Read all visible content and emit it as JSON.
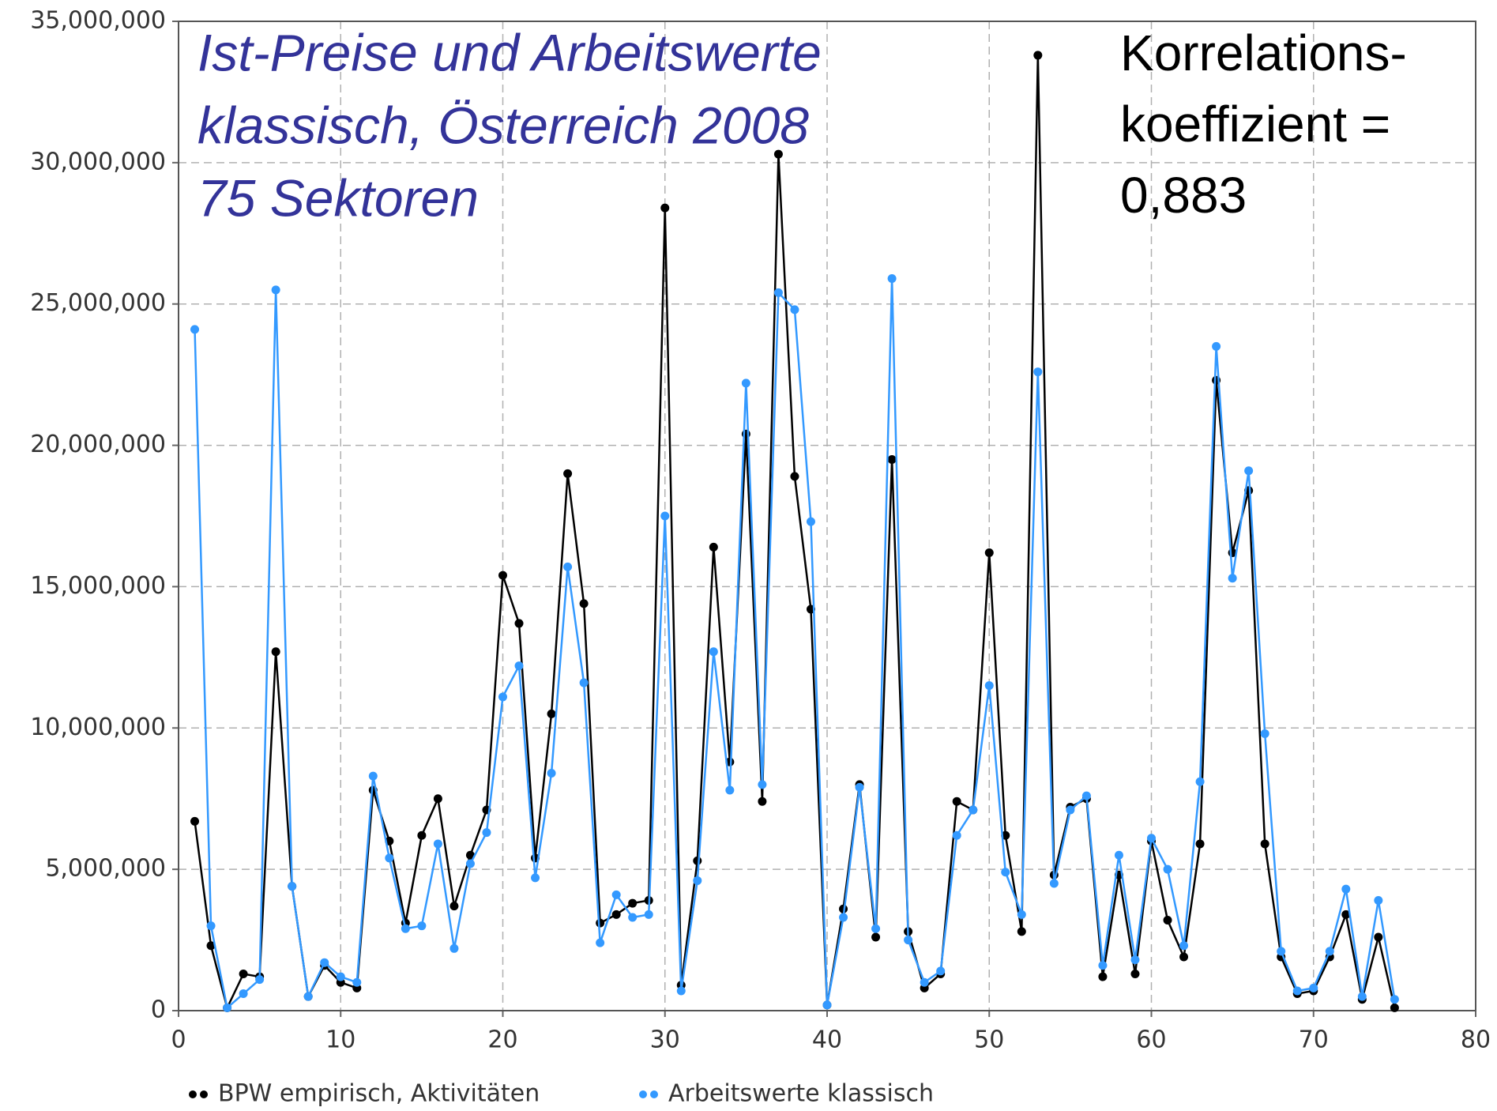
{
  "chart_data": {
    "type": "line",
    "title": [
      "Ist-Preise und Arbeitswerte",
      "klassisch, Österreich 2008",
      "75 Sektoren"
    ],
    "annotation": [
      "Korrelations-",
      "koeffizient =",
      "0,883"
    ],
    "x": [
      1,
      2,
      3,
      4,
      5,
      6,
      7,
      8,
      9,
      10,
      11,
      12,
      13,
      14,
      15,
      16,
      17,
      18,
      19,
      20,
      21,
      22,
      23,
      24,
      25,
      26,
      27,
      28,
      29,
      30,
      31,
      32,
      33,
      34,
      35,
      36,
      37,
      38,
      39,
      40,
      41,
      42,
      43,
      44,
      45,
      46,
      47,
      48,
      49,
      50,
      51,
      52,
      53,
      54,
      55,
      56,
      57,
      58,
      59,
      60,
      61,
      62,
      63,
      64,
      65,
      66,
      67,
      68,
      69,
      70,
      71,
      72,
      73,
      74,
      75
    ],
    "series": [
      {
        "name": "BPW empirisch, Aktivitäten",
        "color": "#000000",
        "values": [
          6700000,
          2300000,
          100000,
          1300000,
          1200000,
          12700000,
          4400000,
          500000,
          1600000,
          1000000,
          800000,
          7800000,
          6000000,
          3100000,
          6200000,
          7500000,
          3700000,
          5500000,
          7100000,
          15400000,
          13700000,
          5400000,
          10500000,
          19000000,
          14400000,
          3100000,
          3400000,
          3800000,
          3900000,
          28400000,
          900000,
          5300000,
          16400000,
          8800000,
          20400000,
          7400000,
          30300000,
          18900000,
          14200000,
          200000,
          3600000,
          8000000,
          2600000,
          19500000,
          2800000,
          800000,
          1300000,
          7400000,
          7100000,
          16200000,
          6200000,
          2800000,
          33800000,
          4800000,
          7200000,
          7500000,
          1200000,
          4800000,
          1300000,
          6000000,
          3200000,
          1900000,
          5900000,
          22300000,
          16200000,
          18400000,
          5900000,
          1900000,
          600000,
          700000,
          1900000,
          3400000,
          400000,
          2600000,
          100000
        ]
      },
      {
        "name": "Arbeitswerte klassisch",
        "color": "#3399ff",
        "values": [
          24100000,
          3000000,
          100000,
          600000,
          1100000,
          25500000,
          4400000,
          500000,
          1700000,
          1200000,
          1000000,
          8300000,
          5400000,
          2900000,
          3000000,
          5900000,
          2200000,
          5200000,
          6300000,
          11100000,
          12200000,
          4700000,
          8400000,
          15700000,
          11600000,
          2400000,
          4100000,
          3300000,
          3400000,
          17500000,
          700000,
          4600000,
          12700000,
          7800000,
          22200000,
          8000000,
          25400000,
          24800000,
          17300000,
          200000,
          3300000,
          7900000,
          2900000,
          25900000,
          2500000,
          1000000,
          1400000,
          6200000,
          7100000,
          11500000,
          4900000,
          3400000,
          22600000,
          4500000,
          7100000,
          7600000,
          1600000,
          5500000,
          1800000,
          6100000,
          5000000,
          2300000,
          8100000,
          23500000,
          15300000,
          19100000,
          9800000,
          2100000,
          700000,
          800000,
          2100000,
          4300000,
          500000,
          3900000,
          400000
        ]
      }
    ],
    "xlim": [
      0,
      80
    ],
    "xticks": [
      0,
      10,
      20,
      30,
      40,
      50,
      60,
      70,
      80
    ],
    "ylim": [
      0,
      35000000
    ],
    "yticks": [
      0,
      {
        "value": 5000000,
        "label": "5,000,000"
      },
      {
        "value": 10000000,
        "label": "10,000,000"
      },
      {
        "value": 15000000,
        "label": "15,000,000"
      },
      {
        "value": 20000000,
        "label": "20,000,000"
      },
      {
        "value": 25000000,
        "label": "25,000,000"
      },
      {
        "value": 30000000,
        "label": "30,000,000"
      },
      {
        "value": 35000000,
        "label": "35,000,000"
      }
    ],
    "grid": true
  }
}
